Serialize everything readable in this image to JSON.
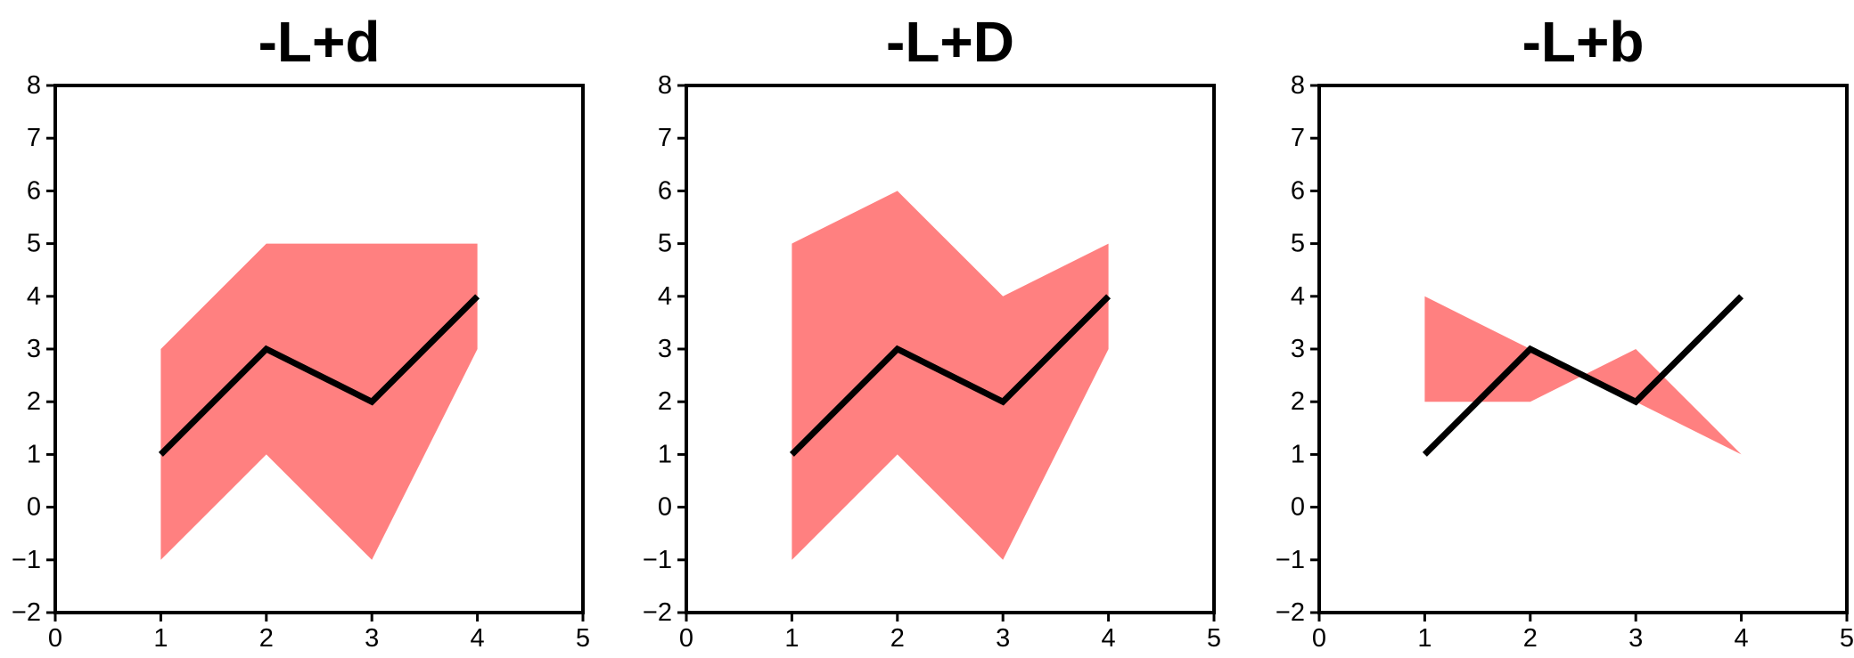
{
  "chart_data": [
    {
      "type": "line",
      "title": "-L+d",
      "xlim": [
        0,
        5
      ],
      "ylim": [
        -2,
        8
      ],
      "x_ticks": [
        "0",
        "1",
        "2",
        "3",
        "4",
        "5"
      ],
      "y_ticks": [
        "−2",
        "−1",
        "0",
        "1",
        "2",
        "3",
        "4",
        "5",
        "6",
        "7",
        "8"
      ],
      "grid": false,
      "colors": {
        "fill": "#ff8080",
        "line": "#000000"
      },
      "series": [
        {
          "type": "line",
          "x": [
            1,
            2,
            3,
            4
          ],
          "y": [
            1,
            3,
            2,
            4
          ]
        },
        {
          "type": "area",
          "x": [
            1,
            2,
            3,
            4
          ],
          "y_lower": [
            -1,
            1,
            -1,
            3
          ],
          "y_upper": [
            3,
            5,
            5,
            5
          ]
        }
      ]
    },
    {
      "type": "line",
      "title": "-L+D",
      "xlim": [
        0,
        5
      ],
      "ylim": [
        -2,
        8
      ],
      "x_ticks": [
        "0",
        "1",
        "2",
        "3",
        "4",
        "5"
      ],
      "y_ticks": [
        "−2",
        "−1",
        "0",
        "1",
        "2",
        "3",
        "4",
        "5",
        "6",
        "7",
        "8"
      ],
      "grid": false,
      "colors": {
        "fill": "#ff8080",
        "line": "#000000"
      },
      "series": [
        {
          "type": "line",
          "x": [
            1,
            2,
            3,
            4
          ],
          "y": [
            1,
            3,
            2,
            4
          ]
        },
        {
          "type": "area",
          "x": [
            1,
            2,
            3,
            4
          ],
          "y_lower": [
            -1,
            1,
            -1,
            3
          ],
          "y_upper": [
            5,
            6,
            4,
            5
          ]
        }
      ]
    },
    {
      "type": "line",
      "title": "-L+b",
      "xlim": [
        0,
        5
      ],
      "ylim": [
        -2,
        8
      ],
      "x_ticks": [
        "0",
        "1",
        "2",
        "3",
        "4",
        "5"
      ],
      "y_ticks": [
        "−2",
        "−1",
        "0",
        "1",
        "2",
        "3",
        "4",
        "5",
        "6",
        "7",
        "8"
      ],
      "grid": false,
      "colors": {
        "fill": "#ff8080",
        "line": "#000000"
      },
      "series": [
        {
          "type": "line",
          "x": [
            1,
            2,
            3,
            4
          ],
          "y": [
            1,
            3,
            2,
            4
          ]
        },
        {
          "type": "area",
          "x": [
            1,
            2,
            3,
            4
          ],
          "y_lower": [
            2,
            2,
            3,
            1
          ],
          "y_upper": [
            4,
            3,
            2,
            1
          ]
        }
      ]
    }
  ]
}
